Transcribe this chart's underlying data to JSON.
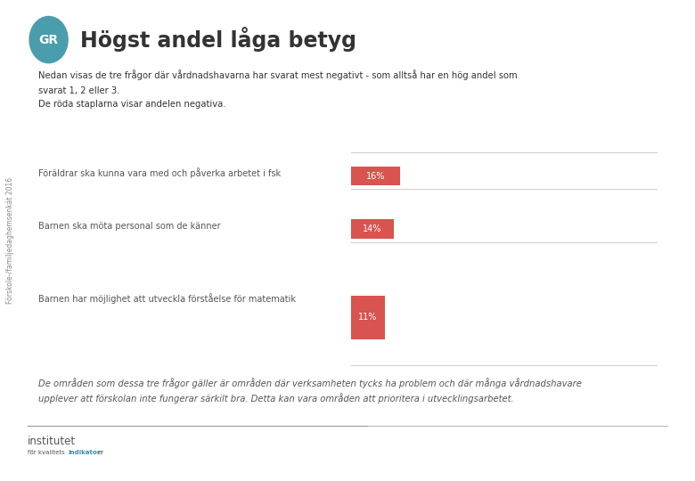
{
  "title": "Högst andel låga betyg",
  "subtitle_line1": "Nedan visas de tre frågor där vårdnadshavarna har svarat mest negativt - som alltså har en hög andel som",
  "subtitle_line2": "svarat 1, 2 eller 3.",
  "subtitle_line3": "De röda staplarna visar andelen negativa.",
  "sidebar_text": "Förskole-/familjedaghemsenkät 2016",
  "questions": [
    "Föräldrar ska kunna vara med och påverka arbetet i fsk",
    "Barnen ska möta personal som de känner",
    "Barnen har möjlighet att utveckla förståelse för matematik"
  ],
  "values": [
    16,
    14,
    11
  ],
  "bar_color": "#d9534f",
  "bar_text_color": "#333333",
  "axis_max": 100,
  "footer_text": "De områden som dessa tre frågor gäller är områden där verksamheten tycks ha problem och där många vårdnadshavare\nupplever att förskolan inte fungerar särkilt bra. Detta kan vara områden att prioritera i utvecklingsarbetet.",
  "bg_color": "#ffffff",
  "text_color": "#333333",
  "label_color": "#555555",
  "logo_circle_color": "#4a9dac",
  "axis_line_color": "#cccccc",
  "sidebar_text_color": "#888888",
  "footer_color": "#555555",
  "institutet_color": "#555555",
  "kvalitet_color": "#3a8fac"
}
